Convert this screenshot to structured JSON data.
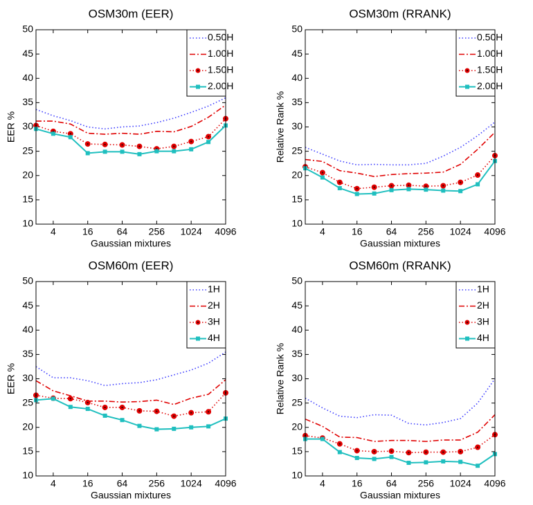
{
  "chart_data": [
    {
      "type": "line",
      "title": "OSM30m (EER)",
      "x_label": "Gaussian mixtures",
      "y_label": "EER %",
      "x": [
        2,
        4,
        8,
        16,
        32,
        64,
        128,
        256,
        512,
        1024,
        2048,
        4096
      ],
      "x_scale": "log2",
      "xlim": [
        2,
        4096
      ],
      "xticks": [
        4,
        16,
        64,
        256,
        1024,
        4096
      ],
      "ylim": [
        10,
        50
      ],
      "yticks": [
        10,
        15,
        20,
        25,
        30,
        35,
        40,
        45,
        50
      ],
      "grid": false,
      "legend": "upper right",
      "series": [
        {
          "name": "0.50H",
          "color": "#3a3aff",
          "line_style": "dotted",
          "marker": "none",
          "values": [
            33.6,
            32.3,
            31.3,
            30.0,
            29.6,
            30.0,
            30.2,
            30.9,
            31.8,
            33.0,
            34.3,
            36.0
          ]
        },
        {
          "name": "1.00H",
          "color": "#e00000",
          "line_style": "dashdot",
          "marker": "none",
          "values": [
            31.2,
            31.2,
            30.6,
            28.7,
            28.5,
            28.7,
            28.5,
            29.1,
            29.0,
            30.1,
            32.0,
            34.5
          ]
        },
        {
          "name": "1.50H",
          "color": "#e00000",
          "line_style": "dotted",
          "marker": "circle",
          "values": [
            30.3,
            29.1,
            28.6,
            26.5,
            26.4,
            26.3,
            26.0,
            25.5,
            26.0,
            27.0,
            28.0,
            31.7
          ]
        },
        {
          "name": "2.00H",
          "color": "#1fbfbf",
          "line_style": "solid",
          "marker": "square",
          "values": [
            29.6,
            28.6,
            27.9,
            24.6,
            24.9,
            24.9,
            24.4,
            25.0,
            25.0,
            25.4,
            26.9,
            30.3
          ]
        }
      ]
    },
    {
      "type": "line",
      "title": "OSM30m (RRANK)",
      "x_label": "Gaussian mixtures",
      "y_label": "Relative Rank %",
      "x": [
        2,
        4,
        8,
        16,
        32,
        64,
        128,
        256,
        512,
        1024,
        2048,
        4096
      ],
      "x_scale": "log2",
      "xlim": [
        2,
        4096
      ],
      "xticks": [
        4,
        16,
        64,
        256,
        1024,
        4096
      ],
      "ylim": [
        10,
        50
      ],
      "yticks": [
        10,
        15,
        20,
        25,
        30,
        35,
        40,
        45,
        50
      ],
      "grid": false,
      "legend": "upper right",
      "series": [
        {
          "name": "0.50H",
          "color": "#3a3aff",
          "line_style": "dotted",
          "marker": "none",
          "values": [
            25.8,
            24.4,
            23.0,
            22.2,
            22.3,
            22.2,
            22.2,
            22.5,
            24.0,
            25.8,
            28.2,
            31.0
          ]
        },
        {
          "name": "1.00H",
          "color": "#e00000",
          "line_style": "dashdot",
          "marker": "none",
          "values": [
            23.3,
            22.9,
            21.0,
            20.5,
            19.8,
            20.2,
            20.4,
            20.5,
            20.7,
            22.3,
            25.4,
            28.9
          ]
        },
        {
          "name": "1.50H",
          "color": "#e00000",
          "line_style": "dotted",
          "marker": "circle",
          "values": [
            21.8,
            20.6,
            18.6,
            17.3,
            17.6,
            17.9,
            18.0,
            17.8,
            17.9,
            18.6,
            20.1,
            24.1
          ]
        },
        {
          "name": "2.00H",
          "color": "#1fbfbf",
          "line_style": "solid",
          "marker": "square",
          "values": [
            21.5,
            19.6,
            17.4,
            16.2,
            16.3,
            17.0,
            17.2,
            17.1,
            16.9,
            16.8,
            18.2,
            23.0
          ]
        }
      ]
    },
    {
      "type": "line",
      "title": "OSM60m (EER)",
      "x_label": "Gaussian mixtures",
      "y_label": "EER %",
      "x": [
        2,
        4,
        8,
        16,
        32,
        64,
        128,
        256,
        512,
        1024,
        2048,
        4096
      ],
      "x_scale": "log2",
      "xlim": [
        2,
        4096
      ],
      "xticks": [
        4,
        16,
        64,
        256,
        1024,
        4096
      ],
      "ylim": [
        10,
        50
      ],
      "yticks": [
        10,
        15,
        20,
        25,
        30,
        35,
        40,
        45,
        50
      ],
      "grid": false,
      "legend": "upper right",
      "series": [
        {
          "name": "1H",
          "color": "#3a3aff",
          "line_style": "dotted",
          "marker": "none",
          "values": [
            32.5,
            30.2,
            30.2,
            29.6,
            28.6,
            29.0,
            29.2,
            29.8,
            30.8,
            31.8,
            33.2,
            35.5
          ]
        },
        {
          "name": "2H",
          "color": "#e00000",
          "line_style": "dashdot",
          "marker": "none",
          "values": [
            29.6,
            27.5,
            26.5,
            25.4,
            25.4,
            25.2,
            25.3,
            25.6,
            24.7,
            26.0,
            26.8,
            29.8
          ]
        },
        {
          "name": "3H",
          "color": "#e00000",
          "line_style": "dotted",
          "marker": "circle",
          "values": [
            26.6,
            26.0,
            25.9,
            25.1,
            24.1,
            24.1,
            23.4,
            23.3,
            22.3,
            23.0,
            23.2,
            27.1
          ]
        },
        {
          "name": "4H",
          "color": "#1fbfbf",
          "line_style": "solid",
          "marker": "square",
          "values": [
            25.6,
            25.9,
            24.2,
            23.8,
            22.4,
            21.5,
            20.3,
            19.6,
            19.7,
            20.0,
            20.2,
            21.8
          ]
        }
      ]
    },
    {
      "type": "line",
      "title": "OSM60m (RRANK)",
      "x_label": "Gaussian mixtures",
      "y_label": "Relative Rank %",
      "x": [
        2,
        4,
        8,
        16,
        32,
        64,
        128,
        256,
        512,
        1024,
        2048,
        4096
      ],
      "x_scale": "log2",
      "xlim": [
        2,
        4096
      ],
      "xticks": [
        4,
        16,
        64,
        256,
        1024,
        4096
      ],
      "ylim": [
        10,
        50
      ],
      "yticks": [
        10,
        15,
        20,
        25,
        30,
        35,
        40,
        45,
        50
      ],
      "grid": false,
      "legend": "upper right",
      "series": [
        {
          "name": "1H",
          "color": "#3a3aff",
          "line_style": "dotted",
          "marker": "none",
          "values": [
            26.0,
            24.0,
            22.3,
            22.0,
            22.6,
            22.5,
            20.8,
            20.5,
            21.0,
            21.8,
            25.0,
            30.0
          ]
        },
        {
          "name": "2H",
          "color": "#e00000",
          "line_style": "dashdot",
          "marker": "none",
          "values": [
            21.7,
            20.2,
            18.0,
            17.9,
            17.1,
            17.3,
            17.3,
            17.1,
            17.4,
            17.4,
            19.0,
            22.6
          ]
        },
        {
          "name": "3H",
          "color": "#e00000",
          "line_style": "dotted",
          "marker": "circle",
          "values": [
            18.3,
            17.8,
            16.6,
            15.2,
            15.0,
            15.1,
            14.8,
            14.9,
            14.9,
            15.0,
            15.9,
            18.5
          ]
        },
        {
          "name": "4H",
          "color": "#1fbfbf",
          "line_style": "solid",
          "marker": "square",
          "values": [
            17.6,
            17.6,
            14.9,
            13.7,
            13.5,
            13.9,
            12.7,
            12.8,
            13.0,
            12.9,
            12.1,
            14.5
          ]
        }
      ]
    }
  ]
}
